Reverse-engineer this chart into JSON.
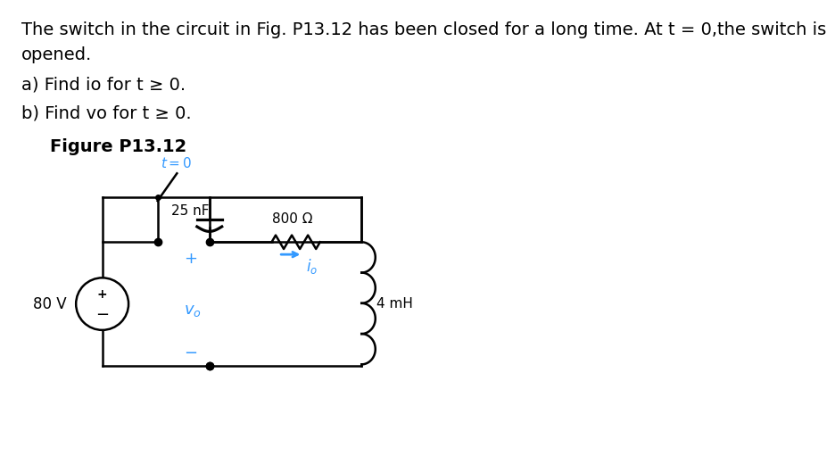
{
  "background_color": "#ffffff",
  "title_text": "The switch in the circuit in Fig. P13.12 has been closed for a long time. At t = 0,the switch is",
  "title_text2": "opened.",
  "line_a": "a) Find io for t ≥ 0.",
  "line_b": "b) Find vo for t ≥ 0.",
  "figure_label": "Figure P13.12",
  "text_color": "#000000",
  "cyan_color": "#3399ff",
  "circuit_line_color": "#000000",
  "font_size_body": 14,
  "font_size_figure_label": 14
}
